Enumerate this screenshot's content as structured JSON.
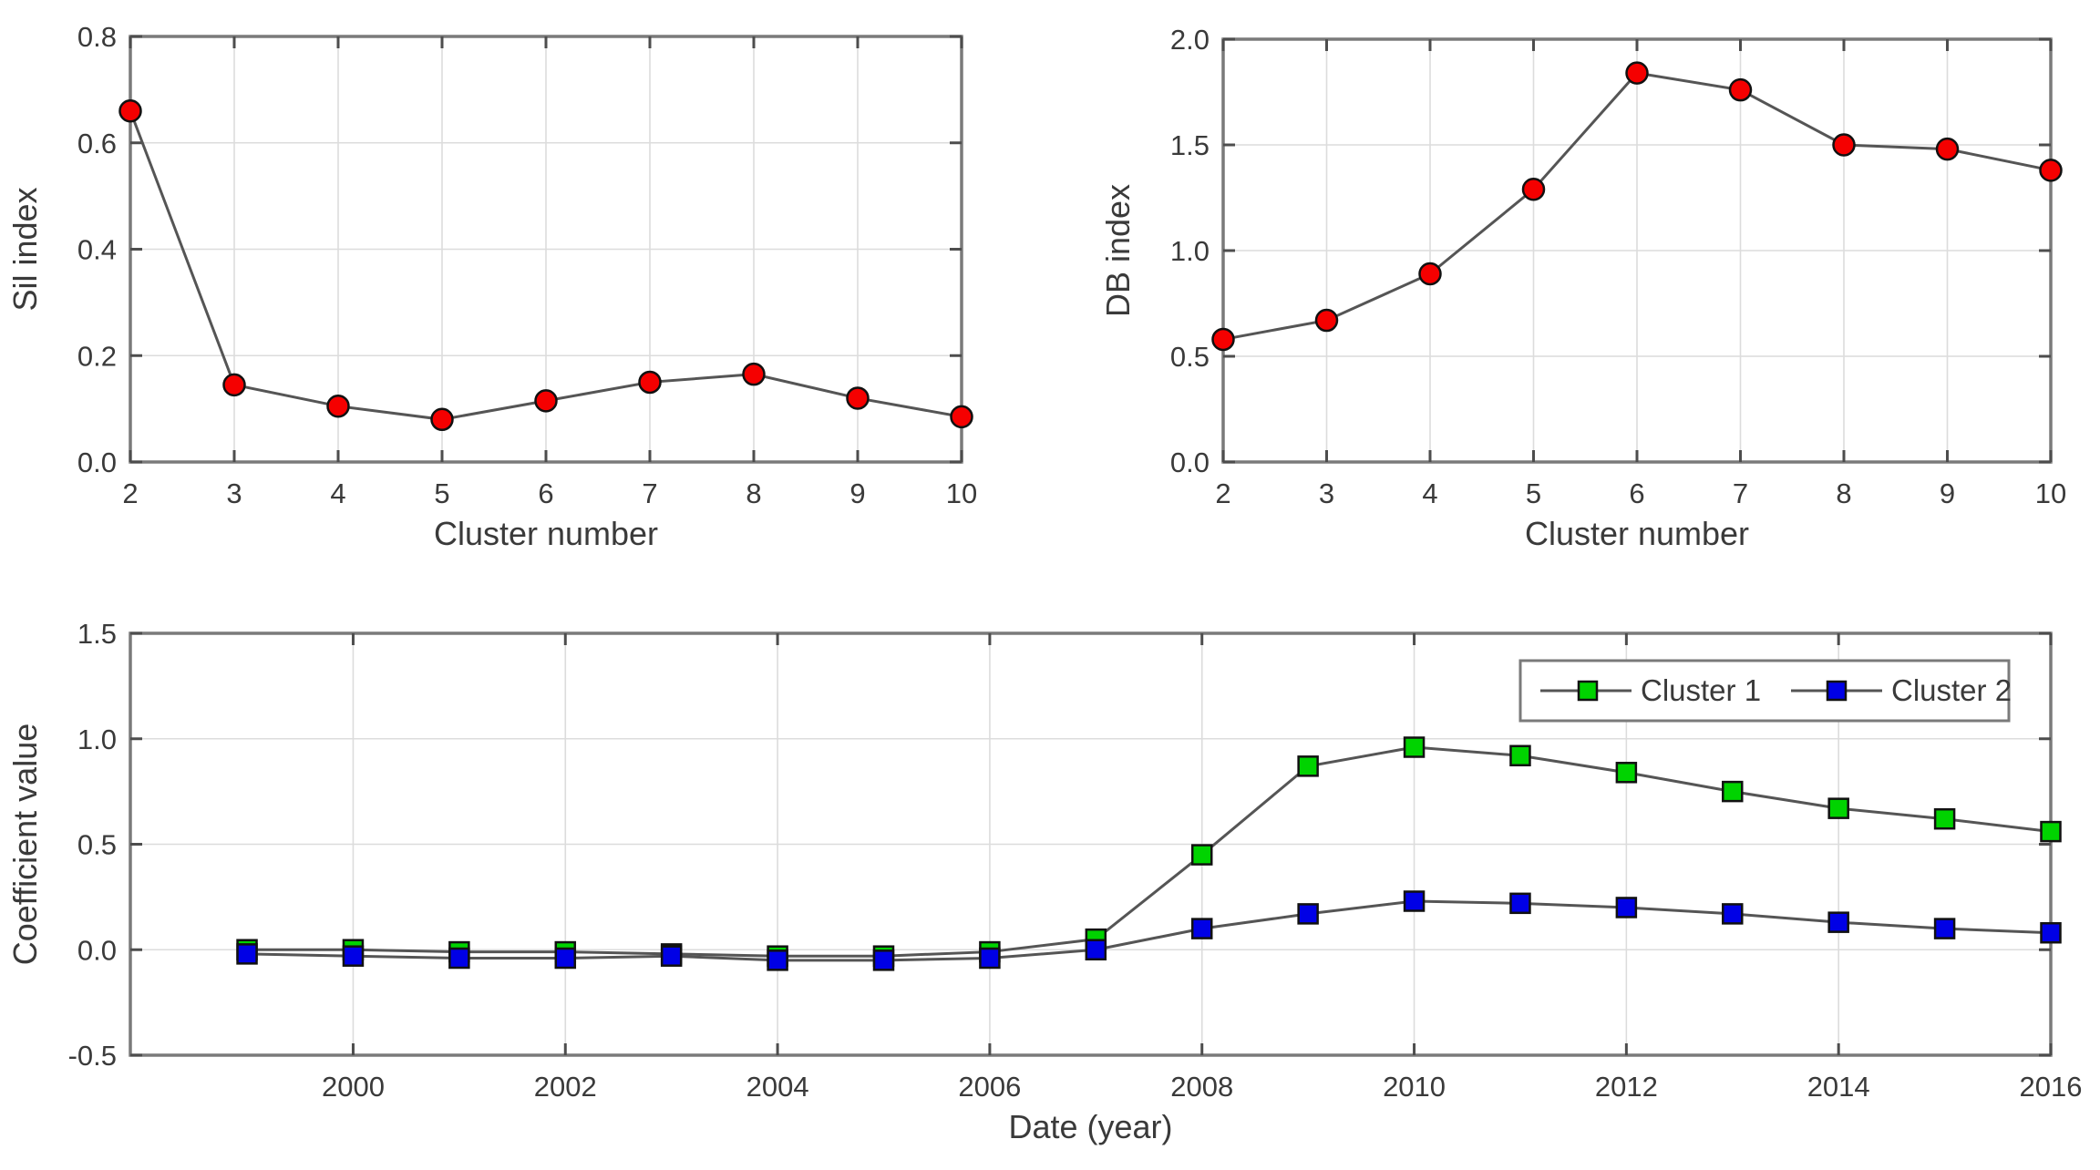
{
  "colors": {
    "red": "#f50000",
    "green": "#00d300",
    "blue": "#0000e6",
    "line": "#555555",
    "grid": "#dcdcdc",
    "frame": "#7a7a7a",
    "tick": "#4d4d4d",
    "marker_edge": "#111111",
    "text": "#3a3a3a",
    "background": "#ffffff"
  },
  "chart_data": [
    {
      "id": "sil-index",
      "type": "line",
      "title": "",
      "xlabel": "Cluster number",
      "ylabel": "Sil index",
      "xlim": [
        2,
        10
      ],
      "ylim": [
        0,
        0.8
      ],
      "grid": true,
      "xticks": [
        2,
        3,
        4,
        5,
        6,
        7,
        8,
        9,
        10
      ],
      "xtick_labels": [
        "2",
        "3",
        "4",
        "5",
        "6",
        "7",
        "8",
        "9",
        "10"
      ],
      "yticks": [
        0.0,
        0.2,
        0.4,
        0.6,
        0.8
      ],
      "ytick_labels": [
        "0.0",
        "0.2",
        "0.4",
        "0.6",
        "0.8"
      ],
      "x": [
        2,
        3,
        4,
        5,
        6,
        7,
        8,
        9,
        10
      ],
      "series": [
        {
          "name": "Sil index",
          "marker": "circle",
          "color": "#f50000",
          "values": [
            0.66,
            0.145,
            0.105,
            0.08,
            0.115,
            0.15,
            0.165,
            0.12,
            0.085
          ]
        }
      ],
      "legend": null
    },
    {
      "id": "db-index",
      "type": "line",
      "title": "",
      "xlabel": "Cluster number",
      "ylabel": "DB index",
      "xlim": [
        2,
        10
      ],
      "ylim": [
        0,
        2.0
      ],
      "grid": true,
      "xticks": [
        2,
        3,
        4,
        5,
        6,
        7,
        8,
        9,
        10
      ],
      "xtick_labels": [
        "2",
        "3",
        "4",
        "5",
        "6",
        "7",
        "8",
        "9",
        "10"
      ],
      "yticks": [
        0.0,
        0.5,
        1.0,
        1.5,
        2.0
      ],
      "ytick_labels": [
        "0.0",
        "0.5",
        "1.0",
        "1.5",
        "2.0"
      ],
      "x": [
        2,
        3,
        4,
        5,
        6,
        7,
        8,
        9,
        10
      ],
      "series": [
        {
          "name": "DB index",
          "marker": "circle",
          "color": "#f50000",
          "values": [
            0.58,
            0.67,
            0.89,
            1.29,
            1.84,
            1.76,
            1.5,
            1.48,
            1.38
          ]
        }
      ],
      "legend": null
    },
    {
      "id": "coefficient",
      "type": "line",
      "title": "",
      "xlabel": "Date (year)",
      "ylabel": "Coefficient value",
      "xlim": [
        1997.9,
        2016
      ],
      "ylim": [
        -0.5,
        1.5
      ],
      "grid": true,
      "xticks": [
        2000,
        2002,
        2004,
        2006,
        2008,
        2010,
        2012,
        2014,
        2016
      ],
      "xtick_labels": [
        "2000",
        "2002",
        "2004",
        "2006",
        "2008",
        "2010",
        "2012",
        "2014",
        "2016"
      ],
      "yticks": [
        -0.5,
        0.0,
        0.5,
        1.0,
        1.5
      ],
      "ytick_labels": [
        "-0.5",
        "0.0",
        "0.5",
        "1.0",
        "1.5"
      ],
      "x": [
        1999,
        2000,
        2001,
        2002,
        2003,
        2004,
        2005,
        2006,
        2007,
        2008,
        2009,
        2010,
        2011,
        2012,
        2013,
        2014,
        2015,
        2016
      ],
      "series": [
        {
          "name": "Cluster 1",
          "marker": "square",
          "color": "#00d300",
          "values": [
            0.0,
            0.0,
            -0.01,
            -0.01,
            -0.02,
            -0.03,
            -0.03,
            -0.01,
            0.05,
            0.45,
            0.87,
            0.96,
            0.92,
            0.84,
            0.75,
            0.67,
            0.62,
            0.56
          ]
        },
        {
          "name": "Cluster 2",
          "marker": "square",
          "color": "#0000e6",
          "values": [
            -0.02,
            -0.03,
            -0.04,
            -0.04,
            -0.03,
            -0.05,
            -0.05,
            -0.04,
            0.0,
            0.1,
            0.17,
            0.23,
            0.22,
            0.2,
            0.17,
            0.13,
            0.1,
            0.08
          ]
        }
      ],
      "legend": {
        "position": "top-right"
      }
    }
  ]
}
